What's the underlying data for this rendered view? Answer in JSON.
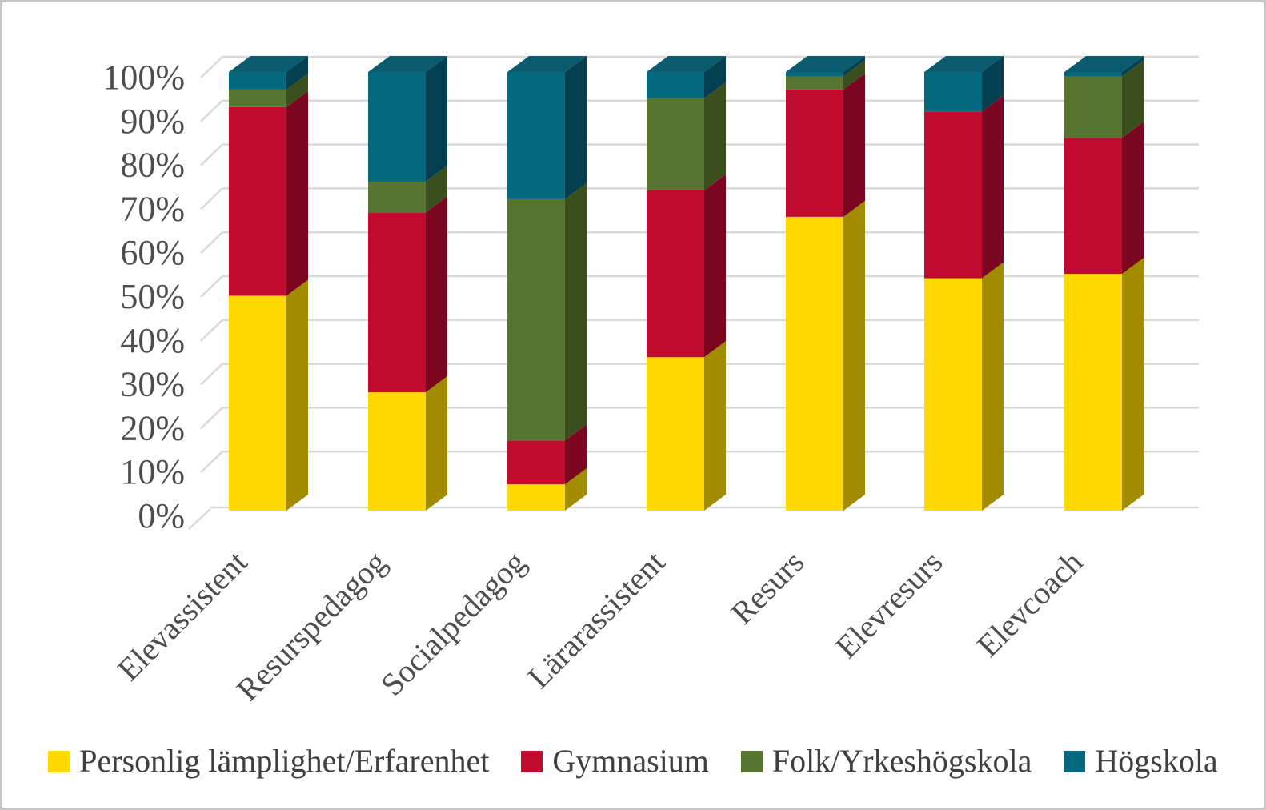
{
  "chart_data": {
    "type": "bar",
    "subtype": "3d-100-percent-stacked-column",
    "title": "",
    "xlabel": "",
    "ylabel": "",
    "grid": true,
    "legend_position": "bottom",
    "values_unit": "percent",
    "ylim": [
      0,
      100
    ],
    "categories": [
      "Elevassistent",
      "Resurspedagog",
      "Socialpedagog",
      "Lärarassistent",
      "Resurs",
      "Elevresurs",
      "Elevcoach"
    ],
    "y_axis_ticks": [
      "0%",
      "10%",
      "20%",
      "30%",
      "40%",
      "50%",
      "60%",
      "70%",
      "80%",
      "90%",
      "100%"
    ],
    "series": [
      {
        "name": "Personlig lämplighet/Erfarenhet",
        "color": "#FFD900",
        "side_color": "#A18C00",
        "top_color": "#C4AA00",
        "values": [
          49,
          27,
          6,
          35,
          67,
          53,
          54
        ]
      },
      {
        "name": "Gymnasium",
        "color": "#C00A2E",
        "side_color": "#7C0620",
        "top_color": "#9C0826",
        "values": [
          43,
          41,
          10,
          38,
          29,
          38,
          31
        ]
      },
      {
        "name": "Folk/Yrkeshögskola",
        "color": "#587431",
        "side_color": "#3A4E1E",
        "top_color": "#4A6428",
        "values": [
          4,
          7,
          55,
          21,
          3,
          0,
          14
        ]
      },
      {
        "name": "Högskola",
        "color": "#04687E",
        "side_color": "#033F4E",
        "top_color": "#0B5B6E",
        "values": [
          4,
          25,
          29,
          6,
          1,
          9,
          1
        ]
      }
    ],
    "gridline_color": "#D9D9D9",
    "axis_text_color": "#4D4D4D"
  }
}
